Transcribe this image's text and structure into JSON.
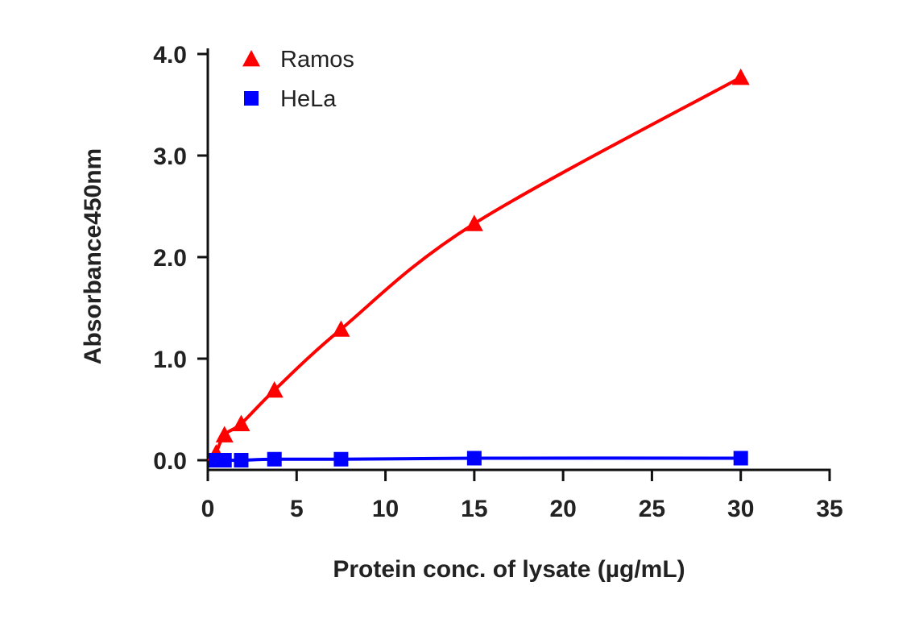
{
  "chart_data": {
    "type": "line",
    "xlabel": "Protein conc. of lysate (µg/mL)",
    "ylabel": "Absorbance450nm",
    "xlim": [
      0,
      35
    ],
    "ylim": [
      0,
      4
    ],
    "xticks": [
      0,
      5,
      10,
      15,
      20,
      25,
      30,
      35
    ],
    "xtick_labels": [
      "0",
      "5",
      "10",
      "15",
      "20",
      "25",
      "30",
      "35"
    ],
    "yticks": [
      0,
      1,
      2,
      3,
      4
    ],
    "ytick_labels": [
      "0.0",
      "1.0",
      "2.0",
      "3.0",
      "4.0"
    ],
    "grid": false,
    "legend_position": "top-left",
    "series": [
      {
        "name": "Ramos",
        "color": "#ff0000",
        "marker": "triangle",
        "x": [
          0.47,
          0.94,
          1.88,
          3.75,
          7.5,
          15,
          30
        ],
        "y": [
          0.07,
          0.25,
          0.36,
          0.69,
          1.29,
          2.33,
          3.77
        ]
      },
      {
        "name": "HeLa",
        "color": "#0000ff",
        "marker": "square",
        "x": [
          0.47,
          0.94,
          1.88,
          3.75,
          7.5,
          15,
          30
        ],
        "y": [
          0.0,
          0.0,
          0.0,
          0.01,
          0.01,
          0.02,
          0.02
        ]
      }
    ]
  }
}
